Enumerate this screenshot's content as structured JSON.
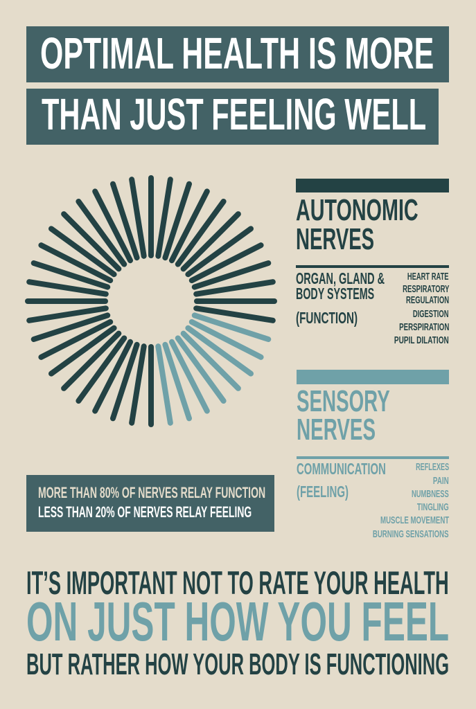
{
  "colors": {
    "background": "#e4dccb",
    "title_box": "#436266",
    "dark": "#234244",
    "teal": "#6fa1a8",
    "white": "#ffffff"
  },
  "title": {
    "line1": "OPTIMAL HEALTH IS MORE",
    "line2": "THAN JUST FEELING WELL"
  },
  "sunburst": {
    "total_rays": 40,
    "feeling_rays": 8,
    "function_color": "#234244",
    "feeling_color": "#6fa1a8"
  },
  "autonomic": {
    "heading_line1": "AUTONOMIC",
    "heading_line2": "NERVES",
    "desc_line1": "ORGAN, GLAND &",
    "desc_line2": "BODY SYSTEMS",
    "desc_tag": "(FUNCTION)",
    "items": [
      "HEART RATE",
      "RESPIRATORY",
      "REGULATION",
      "DIGESTION",
      "PERSPIRATION",
      "PUPIL DILATION"
    ]
  },
  "sensory": {
    "heading_line1": "SENSORY",
    "heading_line2": "NERVES",
    "desc_line1": "COMMUNICATION",
    "desc_tag": "(FEELING)",
    "items": [
      "REFLEXES",
      "PAIN",
      "NUMBNESS",
      "TINGLING",
      "MUSCLE MOVEMENT",
      "BURNING SENSATIONS"
    ]
  },
  "stats": {
    "line1": "MORE THAN 80% OF NERVES RELAY FUNCTION",
    "line2": "LESS THAN 20% OF NERVES RELAY FEELING"
  },
  "footer": {
    "line1": "IT’S IMPORTANT NOT TO RATE YOUR HEALTH",
    "line2": "ON JUST HOW YOU FEEL",
    "line3": "BUT RATHER HOW YOUR BODY IS FUNCTIONING"
  }
}
